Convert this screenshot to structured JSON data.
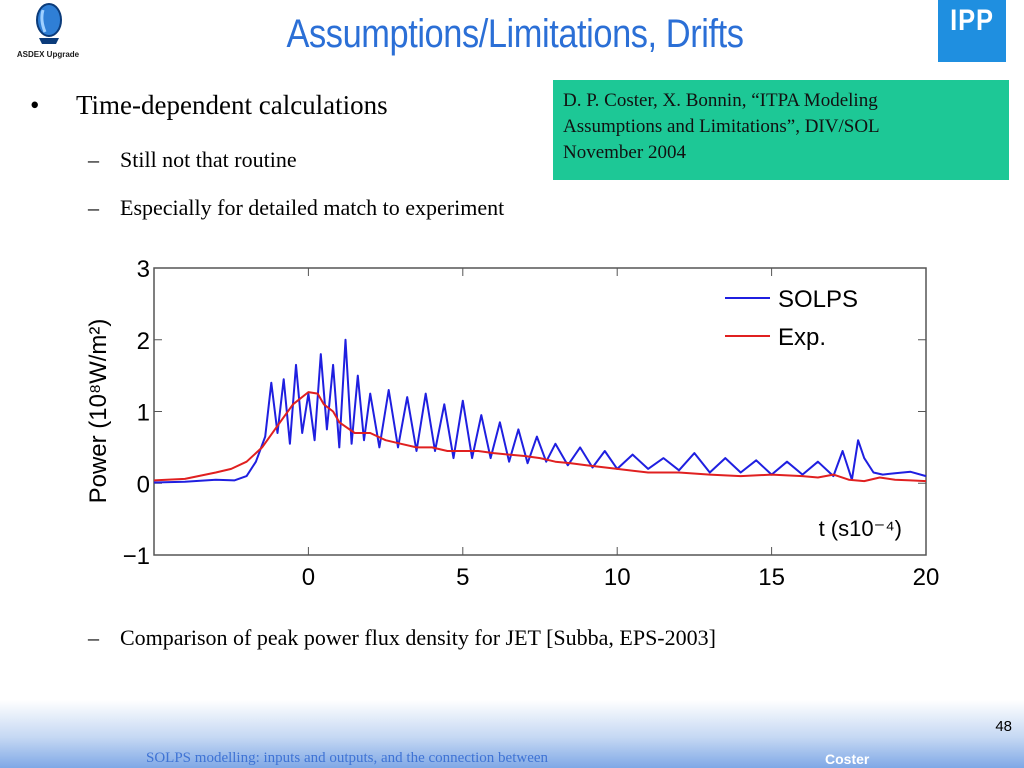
{
  "header": {
    "title": "Assumptions/Limitations, Drifts",
    "left_logo_caption": "ASDEX Upgrade",
    "right_logo_text": "IPP"
  },
  "reference_box": {
    "lines": [
      "D. P. Coster, X. Bonnin, “ITPA Modeling",
      "Assumptions and Limitations”, DIV/SOL",
      "November 2004"
    ],
    "color": "#1dc896"
  },
  "content": {
    "bullet": "Time-dependent calculations",
    "bullet_marker": "•",
    "sub_items": [
      "Still not that routine",
      "Especially for detailed match to experiment"
    ],
    "caption_item": "Comparison of peak power flux density for JET [Subba, EPS-2003]",
    "dash": "–"
  },
  "chart_data": {
    "type": "line",
    "ylabel": "Power (10⁸W/m²)",
    "xlabel": "t (s10⁻⁴)",
    "xlim": [
      -5,
      20
    ],
    "ylim": [
      -1,
      3
    ],
    "x_ticks": [
      "0",
      "5",
      "10",
      "15",
      "20"
    ],
    "y_ticks": [
      "−1",
      "0",
      "1",
      "2",
      "3"
    ],
    "x_tick_values": [
      0,
      5,
      10,
      15,
      20
    ],
    "y_tick_values": [
      -1,
      0,
      1,
      2,
      3
    ],
    "legend_position": "top-right",
    "series": [
      {
        "name": "SOLPS",
        "color": "#1f1fe0",
        "x": [
          -5,
          -4,
          -3,
          -2.4,
          -2,
          -1.7,
          -1.4,
          -1.2,
          -1,
          -0.8,
          -0.6,
          -0.4,
          -0.2,
          0,
          0.2,
          0.4,
          0.6,
          0.8,
          1,
          1.2,
          1.4,
          1.6,
          1.8,
          2,
          2.3,
          2.6,
          2.9,
          3.2,
          3.5,
          3.8,
          4.1,
          4.4,
          4.7,
          5,
          5.3,
          5.6,
          5.9,
          6.2,
          6.5,
          6.8,
          7.1,
          7.4,
          7.7,
          8,
          8.4,
          8.8,
          9.2,
          9.6,
          10,
          10.5,
          11,
          11.5,
          12,
          12.5,
          13,
          13.5,
          14,
          14.5,
          15,
          15.5,
          16,
          16.5,
          17,
          17.3,
          17.6,
          17.8,
          18,
          18.3,
          18.6,
          19,
          19.5,
          20
        ],
        "y": [
          0.01,
          0.02,
          0.05,
          0.04,
          0.1,
          0.3,
          0.65,
          1.4,
          0.7,
          1.45,
          0.55,
          1.65,
          0.7,
          1.25,
          0.6,
          1.8,
          0.75,
          1.65,
          0.5,
          2.0,
          0.55,
          1.5,
          0.6,
          1.25,
          0.5,
          1.3,
          0.5,
          1.2,
          0.45,
          1.25,
          0.45,
          1.1,
          0.35,
          1.15,
          0.35,
          0.95,
          0.35,
          0.85,
          0.3,
          0.75,
          0.28,
          0.65,
          0.3,
          0.55,
          0.25,
          0.5,
          0.22,
          0.45,
          0.2,
          0.4,
          0.2,
          0.35,
          0.18,
          0.42,
          0.15,
          0.35,
          0.15,
          0.32,
          0.12,
          0.3,
          0.12,
          0.3,
          0.1,
          0.45,
          0.05,
          0.6,
          0.35,
          0.15,
          0.12,
          0.14,
          0.16,
          0.1
        ]
      },
      {
        "name": "Exp.",
        "color": "#e02020",
        "x": [
          -5,
          -4,
          -3,
          -2.5,
          -2,
          -1.5,
          -1,
          -0.5,
          0,
          0.3,
          0.5,
          0.8,
          1,
          1.5,
          2,
          2.5,
          3,
          3.5,
          4,
          4.5,
          5,
          5.5,
          6,
          6.5,
          7,
          7.5,
          8,
          8.5,
          9,
          10,
          11,
          12,
          13,
          14,
          15,
          16,
          16.5,
          17,
          17.5,
          18,
          18.5,
          19,
          19.5,
          20
        ],
        "y": [
          0.04,
          0.06,
          0.15,
          0.2,
          0.3,
          0.5,
          0.8,
          1.1,
          1.27,
          1.25,
          1.1,
          1.0,
          0.85,
          0.7,
          0.7,
          0.6,
          0.55,
          0.5,
          0.5,
          0.45,
          0.45,
          0.45,
          0.42,
          0.4,
          0.38,
          0.35,
          0.3,
          0.28,
          0.25,
          0.2,
          0.15,
          0.15,
          0.12,
          0.1,
          0.12,
          0.1,
          0.08,
          0.12,
          0.05,
          0.03,
          0.08,
          0.05,
          0.04,
          0.03
        ]
      }
    ]
  },
  "footer": {
    "page_number": "48",
    "presentation_title": "SOLPS modelling: inputs and outputs, and the connection between",
    "author": "Coster"
  }
}
